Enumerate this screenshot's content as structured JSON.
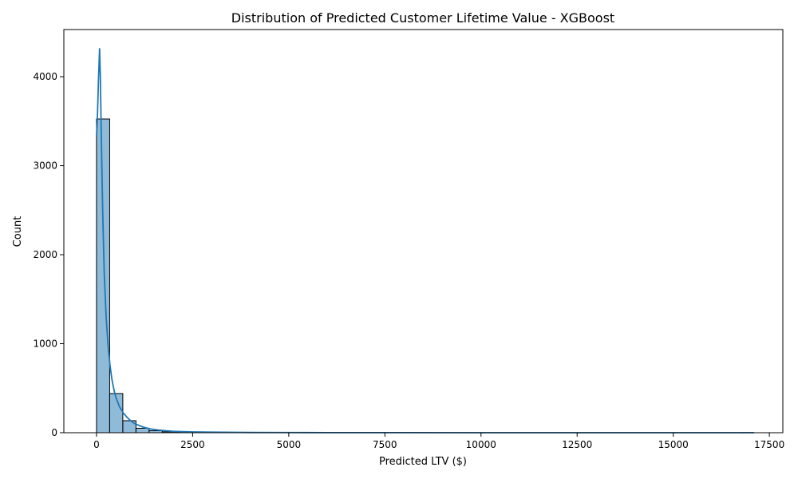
{
  "chart_data": {
    "type": "bar",
    "title": "Distribution of Predicted Customer Lifetime Value - XGBoost",
    "xlabel": "Predicted LTV ($)",
    "ylabel": "Count",
    "xlim": [
      -850,
      17850
    ],
    "ylim": [
      0,
      4530
    ],
    "xticks": [
      0,
      2500,
      5000,
      7500,
      10000,
      12500,
      15000,
      17500
    ],
    "xtick_labels": [
      "0",
      "2500",
      "5000",
      "7500",
      "10000",
      "12500",
      "15000",
      "17500"
    ],
    "yticks": [
      0,
      1000,
      2000,
      3000,
      4000
    ],
    "ytick_labels": [
      "0",
      "1000",
      "2000",
      "3000",
      "4000"
    ],
    "grid": false,
    "bins": {
      "start": 0,
      "width": 342,
      "count": 50
    },
    "bin_counts": [
      3525,
      440,
      135,
      50,
      22,
      10,
      6,
      4,
      3,
      2,
      2,
      1,
      1,
      1,
      1,
      0,
      1,
      0,
      0,
      1,
      0,
      0,
      0,
      0,
      1,
      0,
      0,
      0,
      0,
      0,
      0,
      0,
      0,
      0,
      0,
      0,
      0,
      0,
      0,
      0,
      0,
      0,
      0,
      0,
      0,
      0,
      0,
      0,
      0,
      1
    ],
    "kde": {
      "x": [
        0,
        20,
        50,
        80,
        100,
        130,
        160,
        200,
        250,
        300,
        350,
        400,
        450,
        500,
        600,
        700,
        800,
        900,
        1000,
        1200,
        1400,
        1600,
        1800,
        2000,
        2500,
        3000,
        4000,
        5000,
        6000,
        8000,
        10000,
        12000,
        14000,
        17100
      ],
      "y": [
        3330,
        3500,
        3950,
        4320,
        4000,
        3200,
        2500,
        1800,
        1300,
        980,
        760,
        600,
        490,
        400,
        290,
        220,
        170,
        130,
        100,
        65,
        42,
        30,
        22,
        16,
        9,
        6,
        3,
        2,
        1,
        1,
        0,
        0,
        0,
        0
      ]
    },
    "colors": {
      "bar_fill": "#1f77b4",
      "bar_fill_opacity": 0.5,
      "bar_edge": "#000000",
      "kde_line": "#1f77b4"
    }
  }
}
